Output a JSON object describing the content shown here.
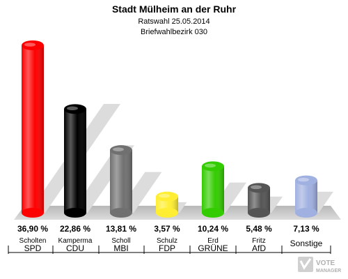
{
  "chart_data": {
    "type": "bar",
    "title": "Stadt Mülheim an der Ruhr",
    "subtitle": "Ratswahl 25.05.2014",
    "subtitle2": "Briefwahlbezirk 030",
    "categories": [
      "SPD",
      "CDU",
      "MBI",
      "FDP",
      "GRÜNE",
      "AfD",
      "Sonstige"
    ],
    "candidates": [
      "Scholten",
      "Kamperma",
      "Scholl",
      "Schulz",
      "Erd",
      "Fritz",
      ""
    ],
    "values": [
      36.9,
      22.86,
      13.81,
      3.57,
      10.24,
      5.48,
      7.13
    ],
    "value_labels": [
      "36,90 %",
      "22,86 %",
      "13,81 %",
      "3,57 %",
      "10,24 %",
      "5,48 %",
      "7,13 %"
    ],
    "colors": [
      "#ff0000",
      "#000000",
      "#707070",
      "#ffee33",
      "#33cc00",
      "#555555",
      "#a0b0e0"
    ],
    "ylim": [
      0,
      36.9
    ]
  },
  "branding": {
    "logo_text_1": "VOTE",
    "logo_text_2": "MANAGER"
  }
}
